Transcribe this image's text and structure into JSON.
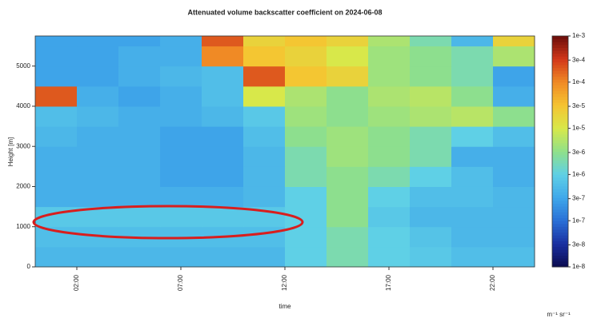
{
  "chart_data": {
    "type": "heatmap",
    "title": "Attenuated volume backscatter coefficient on 2024-06-08",
    "x_label": "time",
    "y_label": "Height [m]",
    "colorbar_label": "m⁻¹ sr⁻¹",
    "xlim": [
      0,
      24
    ],
    "ylim": [
      0,
      5750
    ],
    "xticks": [
      {
        "value": 2,
        "label": "02:00"
      },
      {
        "value": 7,
        "label": "07:00"
      },
      {
        "value": 12,
        "label": "12:00"
      },
      {
        "value": 17,
        "label": "17:00"
      },
      {
        "value": 22,
        "label": "22:00"
      }
    ],
    "yticks": [
      0,
      1000,
      2000,
      3000,
      4000,
      5000
    ],
    "x_bins": [
      0,
      2,
      4,
      6,
      8,
      10,
      12,
      14,
      16,
      18,
      20,
      22,
      24
    ],
    "y_bins": [
      0,
      500,
      1000,
      1500,
      2000,
      2500,
      3000,
      3500,
      4000,
      4500,
      5000,
      5500,
      5750
    ],
    "color_scale": "log",
    "clim": [
      1e-08,
      0.001
    ],
    "colorbar_ticks": [
      {
        "value": 1e-08,
        "label": "1e-8"
      },
      {
        "value": 3e-08,
        "label": "3e-8"
      },
      {
        "value": 1e-07,
        "label": "1e-7"
      },
      {
        "value": 3e-07,
        "label": "3e-7"
      },
      {
        "value": 1e-06,
        "label": "1e-6"
      },
      {
        "value": 3e-06,
        "label": "3e-6"
      },
      {
        "value": 1e-05,
        "label": "1e-5"
      },
      {
        "value": 3e-05,
        "label": "3e-5"
      },
      {
        "value": 0.0001,
        "label": "1e-4"
      },
      {
        "value": 0.0003,
        "label": "3e-4"
      },
      {
        "value": 0.001,
        "label": "1e-3"
      }
    ],
    "z": [
      [
        5e-07,
        5e-07,
        5e-07,
        5e-07,
        5e-07,
        5e-07,
        1e-06,
        2e-06,
        1e-06,
        8e-07,
        6e-07,
        6e-07
      ],
      [
        6e-07,
        6e-07,
        6e-07,
        6e-07,
        6e-07,
        6e-07,
        1e-06,
        2e-06,
        1e-06,
        7e-07,
        5e-07,
        5e-07
      ],
      [
        8e-07,
        8e-07,
        8e-07,
        8e-07,
        8e-07,
        8e-07,
        1e-06,
        3e-06,
        8e-07,
        5e-07,
        5e-07,
        5e-07
      ],
      [
        4e-07,
        4e-07,
        4e-07,
        4e-07,
        4e-07,
        5e-07,
        1e-06,
        3e-06,
        1e-06,
        6e-07,
        6e-07,
        5e-07
      ],
      [
        4e-07,
        4e-07,
        4e-07,
        3e-07,
        3e-07,
        5e-07,
        2e-06,
        3e-06,
        2e-06,
        1e-06,
        6e-07,
        4e-07
      ],
      [
        4e-07,
        4e-07,
        4e-07,
        3e-07,
        3e-07,
        5e-07,
        2e-06,
        4e-06,
        3e-06,
        2e-06,
        4e-07,
        4e-07
      ],
      [
        5e-07,
        4e-07,
        4e-07,
        3e-07,
        3e-07,
        6e-07,
        3e-06,
        4e-06,
        3e-06,
        2e-06,
        1e-06,
        6e-07
      ],
      [
        6e-07,
        5e-07,
        4e-07,
        4e-07,
        5e-07,
        8e-07,
        4e-06,
        3e-06,
        4e-06,
        5e-06,
        6e-06,
        3e-06
      ],
      [
        0.0002,
        4e-07,
        3e-07,
        4e-07,
        6e-07,
        1e-05,
        5e-06,
        3e-06,
        5e-06,
        6e-06,
        3e-06,
        4e-07
      ],
      [
        3e-07,
        3e-07,
        4e-07,
        5e-07,
        6e-07,
        0.0002,
        3e-05,
        2e-05,
        4e-06,
        3e-06,
        2e-06,
        3e-07
      ],
      [
        3e-07,
        3e-07,
        4e-07,
        4e-07,
        0.0001,
        3e-05,
        2e-05,
        1e-05,
        4e-06,
        3e-06,
        2e-06,
        5e-06
      ],
      [
        3e-07,
        3e-07,
        3e-07,
        4e-07,
        0.0002,
        2e-05,
        3e-05,
        2e-05,
        5e-06,
        2e-06,
        5e-07,
        2e-05
      ]
    ]
  }
}
